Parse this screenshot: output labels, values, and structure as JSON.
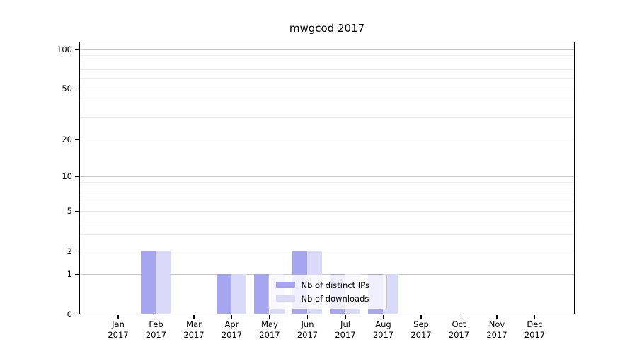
{
  "chart_data": {
    "type": "bar",
    "title": "mwgcod 2017",
    "categories": [
      "Jan",
      "Feb",
      "Mar",
      "Apr",
      "May",
      "Jun",
      "Jul",
      "Aug",
      "Sep",
      "Oct",
      "Nov",
      "Dec"
    ],
    "x_year": "2017",
    "series": [
      {
        "name": "Nb of distinct IPs",
        "color": "#a6a6f0",
        "values": [
          0,
          2,
          0,
          1,
          1,
          2,
          1,
          1,
          0,
          0,
          0,
          0
        ]
      },
      {
        "name": "Nb of downloads",
        "color": "#d9d9f9",
        "values": [
          0,
          2,
          0,
          1,
          1,
          2,
          1,
          1,
          0,
          0,
          0,
          0
        ]
      }
    ],
    "yscale": "log1p",
    "ylim": [
      0,
      113
    ],
    "yticks": [
      0,
      1,
      2,
      5,
      10,
      20,
      50,
      100
    ],
    "major_gridlines": [
      1,
      10,
      100
    ],
    "minor_gridlines": [
      2,
      3,
      4,
      5,
      6,
      7,
      8,
      9,
      20,
      30,
      40,
      50,
      60,
      70,
      80,
      90
    ],
    "grid": true,
    "legend_position": "lower center",
    "xlabel": "",
    "ylabel": ""
  },
  "colors": {
    "bar_distinct_ips": "#a6a6f0",
    "bar_downloads": "#d9d9f9",
    "major_grid": "#c6c6c6",
    "minor_grid": "#ececec",
    "frame": "#000000",
    "legend_border": "#c9c9c9"
  }
}
